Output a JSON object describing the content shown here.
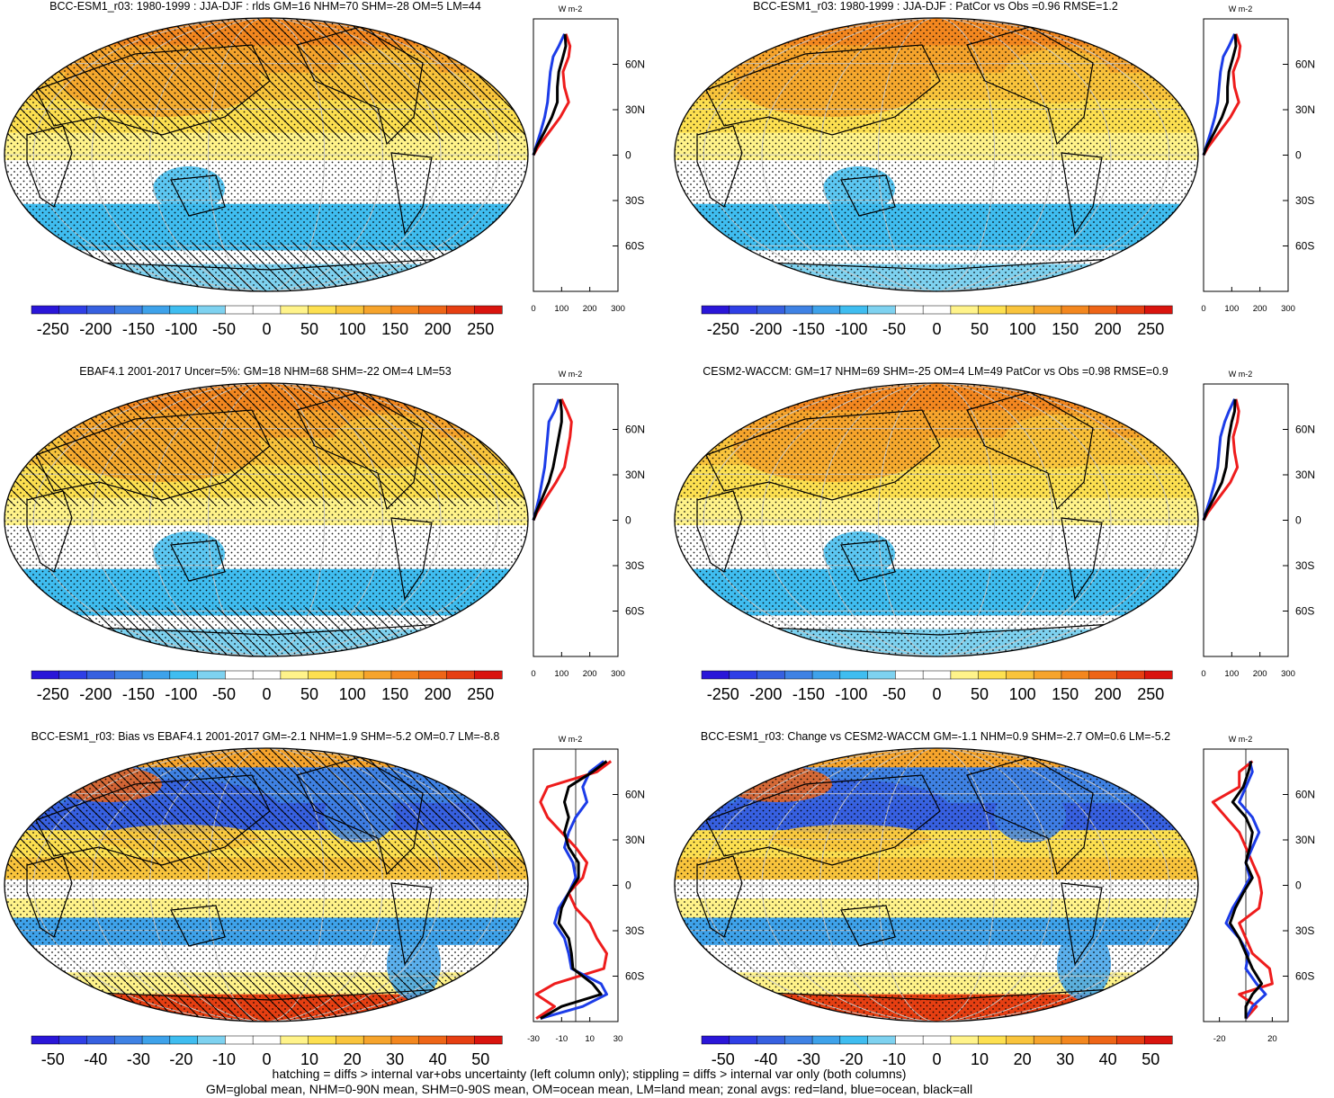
{
  "chart_data": [
    {
      "type": "map-with-zonal-profile",
      "title": "BCC-ESM1_r03: 1980-1999 : JJA-DJF : rlds GM=16 NHM=70 SHM=-28 OM=5 LM=44",
      "colorbar": {
        "ticks": [
          "-250",
          "-200",
          "-150",
          "-100",
          "-50",
          "0",
          "50",
          "100",
          "150",
          "200",
          "250"
        ],
        "min": -275,
        "max": 275
      },
      "overlay": {
        "hatching": true,
        "stippling": true
      },
      "zonal_profile": {
        "unit": "W m-2",
        "xticks": [
          "0",
          "100",
          "200",
          "300"
        ],
        "xlim": [
          0,
          300
        ],
        "lat_ticks": [
          "60N",
          "30N",
          "0",
          "30S",
          "60S"
        ],
        "ylim": [
          -90,
          90
        ],
        "lat": [
          80,
          72,
          65,
          55,
          45,
          35,
          25,
          15,
          5,
          0
        ],
        "land": [
          115,
          130,
          125,
          105,
          110,
          125,
          95,
          55,
          15,
          0
        ],
        "ocean": [
          110,
          90,
          70,
          60,
          55,
          50,
          40,
          25,
          8,
          0
        ],
        "all": [
          112,
          115,
          105,
          90,
          85,
          85,
          65,
          38,
          10,
          0
        ]
      }
    },
    {
      "type": "map-with-zonal-profile",
      "title": "BCC-ESM1_r03: 1980-1999 : JJA-DJF : PatCor vs Obs =0.96 RMSE=1.2",
      "colorbar": {
        "ticks": [
          "-250",
          "-200",
          "-150",
          "-100",
          "-50",
          "0",
          "50",
          "100",
          "150",
          "200",
          "250"
        ],
        "min": -275,
        "max": 275
      },
      "overlay": {
        "hatching": false,
        "stippling": true
      },
      "zonal_profile": {
        "unit": "W m-2",
        "xticks": [
          "0",
          "100",
          "200",
          "300"
        ],
        "xlim": [
          0,
          300
        ],
        "lat_ticks": [
          "60N",
          "30N",
          "0",
          "30S",
          "60S"
        ],
        "ylim": [
          -90,
          90
        ],
        "lat": [
          80,
          72,
          65,
          55,
          45,
          35,
          25,
          15,
          5,
          0
        ],
        "land": [
          115,
          130,
          125,
          105,
          110,
          125,
          95,
          55,
          15,
          0
        ],
        "ocean": [
          110,
          90,
          70,
          60,
          55,
          50,
          40,
          25,
          8,
          0
        ],
        "all": [
          112,
          115,
          105,
          90,
          85,
          85,
          65,
          38,
          10,
          0
        ]
      }
    },
    {
      "type": "map-with-zonal-profile",
      "title": "EBAF4.1 2001-2017 Uncer=5%: GM=18 NHM=68 SHM=-22 OM=4 LM=53",
      "colorbar": {
        "ticks": [
          "-250",
          "-200",
          "-150",
          "-100",
          "-50",
          "0",
          "50",
          "100",
          "150",
          "200",
          "250"
        ],
        "min": -275,
        "max": 275
      },
      "overlay": {
        "hatching": true,
        "stippling": true
      },
      "zonal_profile": {
        "unit": "W m-2",
        "xticks": [
          "0",
          "100",
          "200",
          "300"
        ],
        "xlim": [
          0,
          300
        ],
        "lat_ticks": [
          "60N",
          "30N",
          "0",
          "30S",
          "60S"
        ],
        "ylim": [
          -90,
          90
        ],
        "lat": [
          80,
          72,
          65,
          55,
          45,
          35,
          25,
          15,
          5,
          0
        ],
        "land": [
          100,
          120,
          135,
          130,
          120,
          110,
          80,
          45,
          12,
          0
        ],
        "ocean": [
          90,
          75,
          55,
          50,
          45,
          40,
          30,
          20,
          7,
          0
        ],
        "all": [
          95,
          100,
          100,
          90,
          80,
          70,
          55,
          32,
          9,
          0
        ]
      }
    },
    {
      "type": "map-with-zonal-profile",
      "title": "CESM2-WACCM: GM=17 NHM=69 SHM=-25 OM=4 LM=49 PatCor vs Obs =0.98 RMSE=0.9",
      "colorbar": {
        "ticks": [
          "-250",
          "-200",
          "-150",
          "-100",
          "-50",
          "0",
          "50",
          "100",
          "150",
          "200",
          "250"
        ],
        "min": -275,
        "max": 275
      },
      "overlay": {
        "hatching": false,
        "stippling": true
      },
      "zonal_profile": {
        "unit": "W m-2",
        "xticks": [
          "0",
          "100",
          "200",
          "300"
        ],
        "xlim": [
          0,
          300
        ],
        "lat_ticks": [
          "60N",
          "30N",
          "0",
          "30S",
          "60S"
        ],
        "ylim": [
          -90,
          90
        ],
        "lat": [
          80,
          72,
          65,
          55,
          45,
          35,
          25,
          15,
          5,
          0
        ],
        "land": [
          115,
          125,
          120,
          105,
          110,
          120,
          95,
          55,
          15,
          0
        ],
        "ocean": [
          110,
          90,
          75,
          60,
          55,
          50,
          40,
          25,
          8,
          0
        ],
        "all": [
          112,
          110,
          100,
          90,
          85,
          80,
          65,
          38,
          10,
          0
        ]
      }
    },
    {
      "type": "map-with-zonal-profile",
      "title": "BCC-ESM1_r03: Bias vs EBAF4.1 2001-2017 GM=-2.1 NHM=1.9 SHM=-5.2 OM=0.7 LM=-8.8",
      "colorbar": {
        "ticks": [
          "-50",
          "-40",
          "-30",
          "-20",
          "-10",
          "0",
          "10",
          "20",
          "30",
          "40",
          "50"
        ],
        "min": -55,
        "max": 55
      },
      "overlay": {
        "hatching": true,
        "stippling": true
      },
      "zonal_profile": {
        "unit": "W m-2",
        "xticks": [
          "-30",
          "-10",
          "10",
          "30"
        ],
        "xlim": [
          -30,
          30
        ],
        "lat_ticks": [
          "60N",
          "30N",
          "0",
          "30S",
          "60S"
        ],
        "ylim": [
          -90,
          90
        ],
        "lat": [
          82,
          75,
          65,
          55,
          45,
          35,
          25,
          15,
          5,
          -5,
          -15,
          -25,
          -35,
          -45,
          -55,
          -65,
          -72,
          -80,
          -88
        ],
        "land": [
          25,
          15,
          -20,
          -25,
          -20,
          -10,
          0,
          8,
          5,
          -5,
          0,
          10,
          15,
          22,
          20,
          -15,
          -28,
          -15,
          -28
        ],
        "ocean": [
          20,
          10,
          5,
          8,
          0,
          -5,
          -8,
          -2,
          0,
          -5,
          -12,
          -15,
          -8,
          -5,
          -3,
          18,
          22,
          5,
          -25
        ],
        "all": [
          22,
          12,
          -5,
          -8,
          -5,
          -8,
          -5,
          2,
          2,
          -5,
          -10,
          -12,
          -5,
          -3,
          -2,
          12,
          18,
          -10,
          -25
        ]
      }
    },
    {
      "type": "map-with-zonal-profile",
      "title": "BCC-ESM1_r03: Change vs CESM2-WACCM GM=-1.1 NHM=0.9 SHM=-2.7 OM=0.6 LM=-5.2",
      "colorbar": {
        "ticks": [
          "-50",
          "-40",
          "-30",
          "-20",
          "-10",
          "0",
          "10",
          "20",
          "30",
          "40",
          "50"
        ],
        "min": -55,
        "max": 55
      },
      "overlay": {
        "hatching": false,
        "stippling": true
      },
      "zonal_profile": {
        "unit": "W m-2",
        "xticks": [
          "-20",
          "20"
        ],
        "xlim": [
          -32,
          32
        ],
        "lat_ticks": [
          "60N",
          "30N",
          "0",
          "30S",
          "60S"
        ],
        "ylim": [
          -90,
          90
        ],
        "lat": [
          82,
          75,
          65,
          55,
          45,
          35,
          25,
          15,
          5,
          -5,
          -15,
          -25,
          -35,
          -45,
          -55,
          -65,
          -72,
          -80,
          -88
        ],
        "land": [
          5,
          -5,
          -5,
          -25,
          -15,
          -5,
          0,
          5,
          10,
          12,
          10,
          -5,
          0,
          5,
          18,
          20,
          -5,
          8,
          0
        ],
        "ocean": [
          3,
          5,
          0,
          -5,
          5,
          10,
          5,
          0,
          3,
          -3,
          -10,
          -15,
          -5,
          2,
          0,
          8,
          15,
          5,
          0
        ],
        "all": [
          4,
          2,
          -2,
          -10,
          0,
          5,
          3,
          0,
          5,
          -2,
          -8,
          -12,
          -5,
          0,
          5,
          12,
          5,
          0,
          0
        ]
      }
    }
  ],
  "footer": {
    "line1": "hatching = diffs > internal var+obs uncertainty (left column only); stippling = diffs > internal var only (both columns)",
    "line2": "GM=global mean, NHM=0-90N mean, SHM=0-90S mean, OM=ocean mean, LM=land mean; zonal avgs: red=land, blue=ocean, black=all"
  },
  "colors": {
    "land": "#ee1c1c",
    "ocean": "#1c3ce8",
    "all": "#000000",
    "palette": [
      "#2a16d8",
      "#2f3fe6",
      "#3760e0",
      "#3f82e4",
      "#3ea2ea",
      "#3fbdf0",
      "#7ed2f0",
      "#ffffff",
      "#ffffff",
      "#fff38a",
      "#fde050",
      "#f9c43c",
      "#f6a42c",
      "#f3871f",
      "#ee6517",
      "#e63f12",
      "#d9140e"
    ]
  }
}
